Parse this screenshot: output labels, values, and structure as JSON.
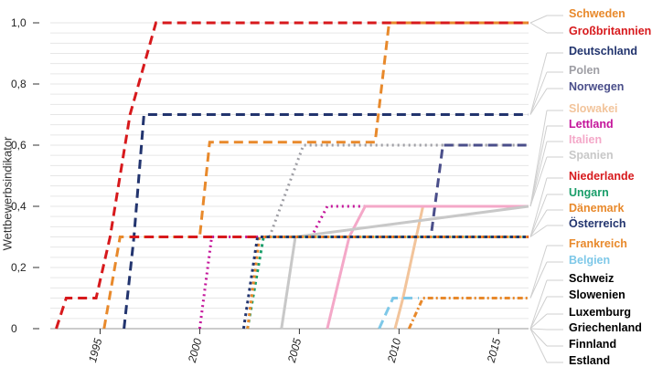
{
  "chart_data": {
    "type": "line",
    "ylabel": "Wettbewerbsindikator",
    "xlabel": "",
    "x_ticks": [
      "1995",
      "2000",
      "2005",
      "2010",
      "2015"
    ],
    "y_ticks": [
      "0",
      "0,2",
      "0,4",
      "0,6",
      "0,8",
      "1,0"
    ],
    "xlim": [
      1992.5,
      2016.5
    ],
    "ylim": [
      0,
      1.0
    ],
    "grid": true,
    "legend_position": "right",
    "series": [
      {
        "name": "Schweden",
        "color": "#E8892B",
        "dash": "10 6",
        "x": [
          1995.2,
          1996.0,
          1996.2,
          1997.5,
          2000.0,
          2000.5,
          2008.8,
          2009.5,
          2016.5
        ],
        "y": [
          0,
          0.3,
          0.3,
          0.3,
          0.3,
          0.61,
          0.61,
          1.0,
          1.0
        ]
      },
      {
        "name": "Großbritannien",
        "color": "#D7191C",
        "dash": "10 6",
        "x": [
          1992.8,
          1993.3,
          1994.8,
          1995.5,
          1996.5,
          1997.8,
          2016.5
        ],
        "y": [
          0,
          0.1,
          0.1,
          0.3,
          0.7,
          1.0,
          1.0
        ]
      },
      {
        "name": "Deutschland",
        "color": "#22346E",
        "dash": "10 6",
        "x": [
          1996.2,
          1996.7,
          1997.2,
          2016.5
        ],
        "y": [
          0,
          0.3,
          0.7,
          0.7
        ]
      },
      {
        "name": "Polen",
        "color": "#9E9EA4",
        "dash": "2 4",
        "x": [
          2003.5,
          2005.2,
          2016.5
        ],
        "y": [
          0.3,
          0.6,
          0.6
        ]
      },
      {
        "name": "Norwegen",
        "color": "#4A4E8A",
        "dash": "10 6",
        "x": [
          2007.5,
          2009.8,
          2011.6,
          2012.2,
          2016.5
        ],
        "y": [
          0.3,
          0.3,
          0.3,
          0.6,
          0.6
        ]
      },
      {
        "name": "Slowakei",
        "color": "#F2C49B",
        "dash": "",
        "x": [
          2009.8,
          2010.2,
          2011.2,
          2016.5
        ],
        "y": [
          0,
          0.1,
          0.4,
          0.4
        ]
      },
      {
        "name": "Lettland",
        "color": "#C4149A",
        "dash": "2 4",
        "x": [
          2000.0,
          2000.6,
          2005.6,
          2006.4,
          2016.5
        ],
        "y": [
          0,
          0.3,
          0.3,
          0.4,
          0.4
        ]
      },
      {
        "name": "Italien",
        "color": "#F4A8C8",
        "dash": "",
        "x": [
          2006.4,
          2007.5,
          2008.3,
          2016.5
        ],
        "y": [
          0,
          0.3,
          0.4,
          0.4
        ]
      },
      {
        "name": "Spanien",
        "color": "#C8C8C8",
        "dash": "",
        "x": [
          2004.1,
          2004.8,
          2016.5
        ],
        "y": [
          0,
          0.3,
          0.4
        ]
      },
      {
        "name": "Niederlande",
        "color": "#D7191C",
        "dash": "10 6",
        "x": [
          1996.5,
          2016.5
        ],
        "y": [
          0.3,
          0.3
        ]
      },
      {
        "name": "Ungarn",
        "color": "#1A9E6A",
        "dash": "3 4",
        "x": [
          2002.4,
          2003.2,
          2016.5
        ],
        "y": [
          0,
          0.3,
          0.3
        ]
      },
      {
        "name": "Dänemark",
        "color": "#E8892B",
        "dash": "3 4",
        "x": [
          2002.4,
          2003.0,
          2016.5
        ],
        "y": [
          0,
          0.3,
          0.3
        ]
      },
      {
        "name": "Österreich",
        "color": "#22346E",
        "dash": "3 4",
        "x": [
          2002.2,
          2002.9,
          2016.5
        ],
        "y": [
          0,
          0.3,
          0.3
        ]
      },
      {
        "name": "Frankreich",
        "color": "#E8892B",
        "dash": "6 3 2 3",
        "x": [
          2010.5,
          2011.2,
          2016.5
        ],
        "y": [
          0,
          0.1,
          0.1
        ]
      },
      {
        "name": "Belgien",
        "color": "#7EC8E8",
        "dash": "10 6",
        "x": [
          2009.0,
          2009.7,
          2011.0
        ],
        "y": [
          0,
          0.1,
          0.1
        ]
      },
      {
        "name": "Schweiz",
        "color": "#000000",
        "dash": "",
        "x": [],
        "y": []
      },
      {
        "name": "Slowenien",
        "color": "#000000",
        "dash": "",
        "x": [],
        "y": []
      },
      {
        "name": "Luxemburg",
        "color": "#000000",
        "dash": "",
        "x": [],
        "y": []
      },
      {
        "name": "Griechenland",
        "color": "#000000",
        "dash": "",
        "x": [],
        "y": []
      },
      {
        "name": "Finnland",
        "color": "#000000",
        "dash": "",
        "x": [],
        "y": []
      },
      {
        "name": "Estland",
        "color": "#000000",
        "dash": "",
        "x": [],
        "y": []
      }
    ]
  }
}
